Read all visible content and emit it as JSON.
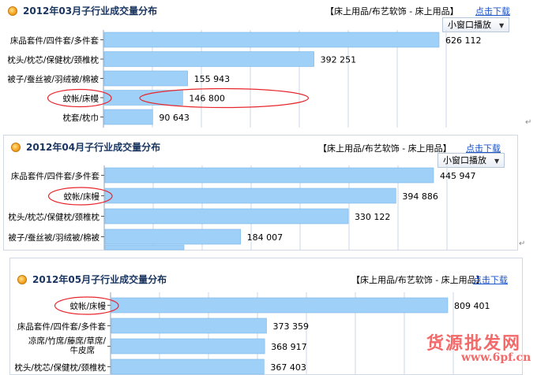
{
  "download_label": "点击下载",
  "mini_window_label": "小窗口播放",
  "watermark": {
    "line1": "货源批发网",
    "line2": "www.6pf.cn"
  },
  "colors": {
    "bar": "#9fd0f8",
    "bar_edge": "#7cb8ea",
    "grid": "#c9d7e6",
    "highlight": "#e8262d",
    "title": "#1a3560"
  },
  "chart_data": [
    {
      "type": "bar",
      "title": "2012年03月子行业成交量分布",
      "breadcrumb": "【床上用品/布艺软饰 - 床上用品】",
      "categories": [
        "床品套件/四件套/多件套",
        "枕头/枕芯/保健枕/颈椎枕",
        "被子/蚕丝被/羽绒被/棉被",
        "蚊帐/床幔",
        "枕套/枕巾"
      ],
      "values": [
        626112,
        392251,
        155943,
        146800,
        90643
      ],
      "value_labels": [
        "626 112",
        "392 251",
        "155 943",
        "146 800",
        "90 643"
      ],
      "highlight_index": 3,
      "orientation": "horizontal",
      "grid": true
    },
    {
      "type": "bar",
      "title": "2012年04月子行业成交量分布",
      "breadcrumb": "【床上用品/布艺软饰 - 床上用品】",
      "categories": [
        "床品套件/四件套/多件套",
        "蚊帐/床幔",
        "枕头/枕芯/保健枕/颈椎枕",
        "被子/蚕丝被/羽绒被/棉被"
      ],
      "values": [
        445947,
        394886,
        330122,
        184007
      ],
      "value_labels": [
        "445 947",
        "394 886",
        "330 122",
        "184 007"
      ],
      "highlight_index": 1,
      "orientation": "horizontal",
      "grid": true
    },
    {
      "type": "bar",
      "title": "2012年05月子行业成交量分布",
      "breadcrumb": "【床上用品/布艺软饰 - 床上用品】",
      "categories": [
        "蚊帐/床幔",
        "床品套件/四件套/多件套",
        "凉席/竹席/藤席/草席/牛皮席",
        "枕头/枕芯/保健枕/颈椎枕"
      ],
      "values": [
        809401,
        373359,
        368917,
        367403
      ],
      "value_labels": [
        "809 401",
        "373 359",
        "368 917",
        "367 403"
      ],
      "highlight_index": 0,
      "orientation": "horizontal",
      "grid": true
    }
  ]
}
